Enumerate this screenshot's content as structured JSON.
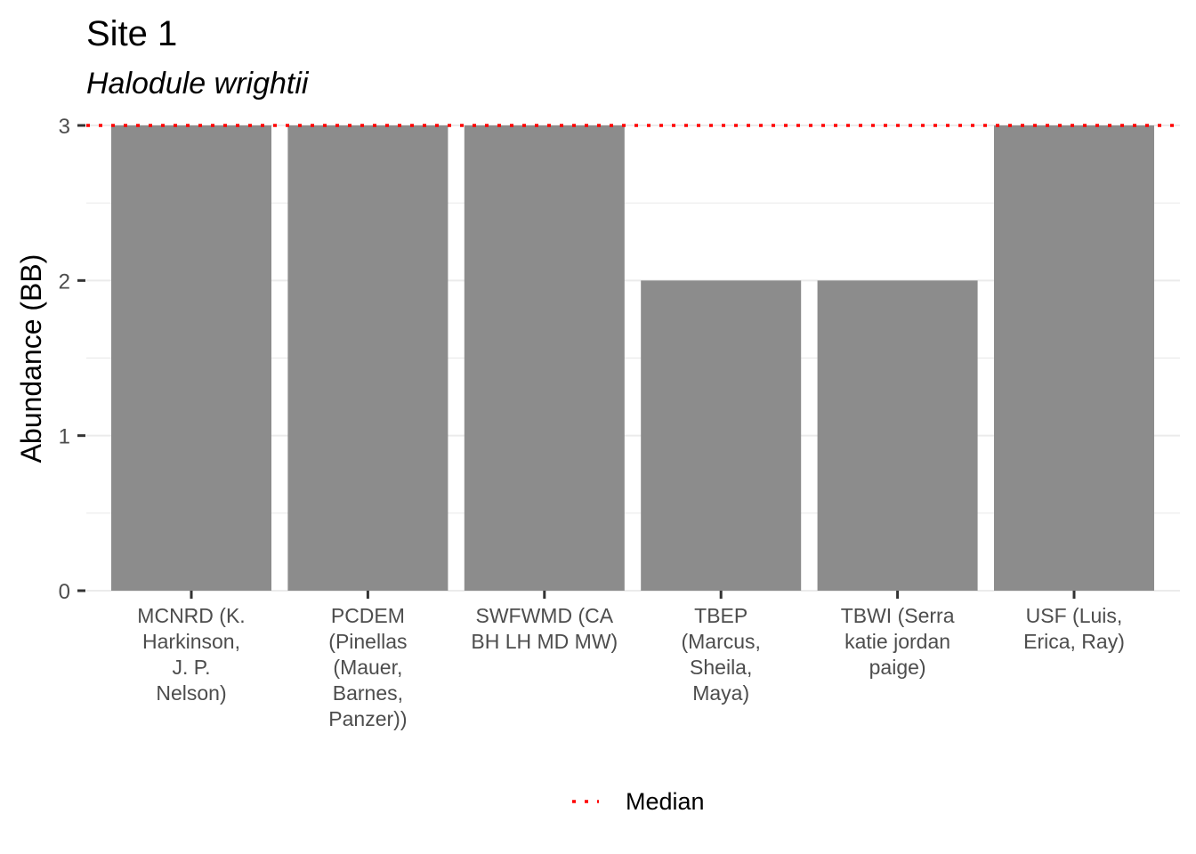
{
  "chart_data": {
    "type": "bar",
    "title": "Site 1",
    "subtitle": "Halodule wrightii",
    "xlabel": "",
    "ylabel": "Abundance (BB)",
    "categories": [
      [
        "MCNRD (K.",
        "Harkinson,",
        "J. P.",
        "Nelson)"
      ],
      [
        "PCDEM",
        "(Pinellas",
        "(Mauer,",
        "Barnes,",
        "Panzer))"
      ],
      [
        "SWFWMD (CA",
        "BH LH MD MW)"
      ],
      [
        "TBEP",
        "(Marcus,",
        "Sheila,",
        "Maya)"
      ],
      [
        "TBWI (Serra",
        "katie jordan",
        "paige)"
      ],
      [
        "USF (Luis,",
        "Erica, Ray)"
      ]
    ],
    "values": [
      3,
      3,
      3,
      2,
      2,
      3
    ],
    "median": 3,
    "ylim": [
      0,
      3
    ],
    "yticks": [
      0,
      1,
      2,
      3
    ],
    "grid": true,
    "bar_color": "#8c8c8c",
    "median_color": "#ff0000",
    "legend": {
      "position": "bottom",
      "entries": [
        "Median"
      ]
    }
  }
}
